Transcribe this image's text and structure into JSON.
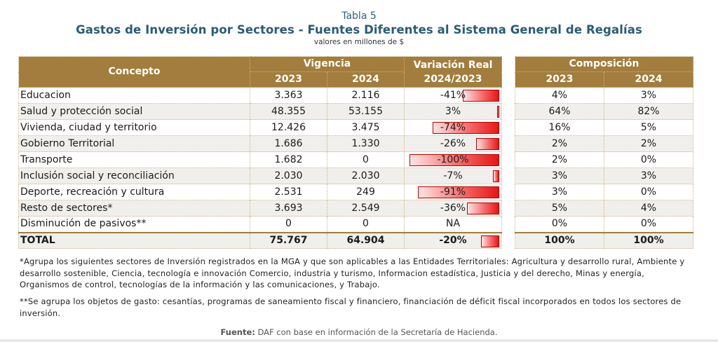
{
  "caption": {
    "number": "Tabla 5",
    "title": "Gastos de Inversión por Sectores - Fuentes Diferentes al Sistema General de Regalías",
    "units": "valores en millones de $"
  },
  "headers": {
    "concepto": "Concepto",
    "vigencia": "Vigencia",
    "y2023": "2023",
    "y2024": "2024",
    "variacion_line1": "Variación Real",
    "variacion_line2": "2024/2023",
    "composicion": "Composición",
    "comp2023": "2023",
    "comp2024": "2024"
  },
  "rows": [
    {
      "concepto": "Educacion",
      "v2023": "3.363",
      "v2024": "2.116",
      "variacion": "-41%",
      "var_value": -41,
      "comp2023": "4%",
      "comp2024": "3%"
    },
    {
      "concepto": "Salud y protección social",
      "v2023": "48.355",
      "v2024": "53.155",
      "variacion": "3%",
      "var_value": 3,
      "comp2023": "64%",
      "comp2024": "82%"
    },
    {
      "concepto": "Vivienda, ciudad y territorio",
      "v2023": "12.426",
      "v2024": "3.475",
      "variacion": "-74%",
      "var_value": -74,
      "comp2023": "16%",
      "comp2024": "5%"
    },
    {
      "concepto": "Gobierno Territorial",
      "v2023": "1.686",
      "v2024": "1.330",
      "variacion": "-26%",
      "var_value": -26,
      "comp2023": "2%",
      "comp2024": "2%"
    },
    {
      "concepto": "Transporte",
      "v2023": "1.682",
      "v2024": "0",
      "variacion": "-100%",
      "var_value": -100,
      "comp2023": "2%",
      "comp2024": "0%"
    },
    {
      "concepto": "Inclusión social y reconciliación",
      "v2023": "2.030",
      "v2024": "2.030",
      "variacion": "-7%",
      "var_value": -7,
      "comp2023": "3%",
      "comp2024": "3%"
    },
    {
      "concepto": "Deporte, recreación y cultura",
      "v2023": "2.531",
      "v2024": "249",
      "variacion": "-91%",
      "var_value": -91,
      "comp2023": "3%",
      "comp2024": "0%"
    },
    {
      "concepto": "Resto de sectores*",
      "v2023": "3.693",
      "v2024": "2.549",
      "variacion": "-36%",
      "var_value": -36,
      "comp2023": "5%",
      "comp2024": "4%"
    },
    {
      "concepto": "Disminución de pasivos**",
      "v2023": "0",
      "v2024": "0",
      "variacion": "NA",
      "var_value": null,
      "comp2023": "0%",
      "comp2024": "0%"
    }
  ],
  "total": {
    "concepto": "TOTAL",
    "v2023": "75.767",
    "v2024": "64.904",
    "variacion": "-20%",
    "var_value": -20,
    "comp2023": "100%",
    "comp2024": "100%"
  },
  "notes": {
    "note1": "*Agrupa los siguientes sectores de Inversión registrados en la MGA y que son aplicables a las Entidades Territoriales: Agricultura y desarrollo rural, Ambiente y desarrollo sostenible, Ciencia, tecnología e innovación Comercio, industria y turismo, Informacion estadística, Justicia y del derecho, Minas y energía, Organismos de control, tecnologías de la información y las comunicaciones, y Trabajo.",
    "note2": "**Se agrupa los objetos de gasto: cesantías, programas de saneamiento fiscal y financiero, financiación de déficit fiscal incorporados en todos los sectores de inversión."
  },
  "source": {
    "label": "Fuente:",
    "text": " DAF con base en información de la Secretaría de Hacienda."
  },
  "colors": {
    "header_bg": "#a27d3d",
    "title": "#2b5c73",
    "bar_red": "#e81414"
  }
}
